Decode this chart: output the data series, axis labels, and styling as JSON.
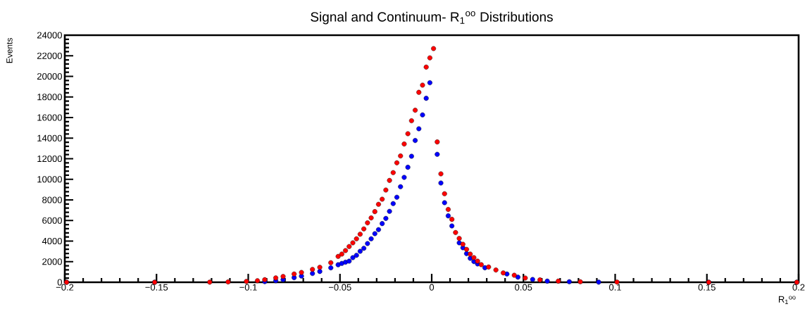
{
  "chart_data": {
    "type": "scatter",
    "title": "Signal and Continuum- R$_{1}$$^{oo}$ Distributions",
    "xlabel": "R$_{1}$$^{oo}$",
    "ylabel": "Events",
    "xlim": [
      -0.2,
      0.2
    ],
    "ylim": [
      0,
      24000
    ],
    "xticks": [
      {
        "value": -0.2,
        "label": "−0.2"
      },
      {
        "value": -0.15,
        "label": "−0.15"
      },
      {
        "value": -0.1,
        "label": "−0.1"
      },
      {
        "value": -0.05,
        "label": "−0.05"
      },
      0,
      0.05,
      0.1,
      0.15,
      0.2
    ],
    "yticks": [
      0,
      2000,
      4000,
      6000,
      8000,
      10000,
      12000,
      14000,
      16000,
      18000,
      20000,
      22000,
      24000
    ],
    "marker": "circle",
    "series": [
      {
        "color": "#0000ff",
        "x": [
          -0.199,
          -0.151,
          -0.101,
          -0.091,
          -0.085,
          -0.081,
          -0.075,
          -0.071,
          -0.065,
          -0.061,
          -0.055,
          -0.051,
          -0.049,
          -0.047,
          -0.045,
          -0.043,
          -0.041,
          -0.039,
          -0.037,
          -0.035,
          -0.033,
          -0.031,
          -0.029,
          -0.027,
          -0.025,
          -0.023,
          -0.021,
          -0.019,
          -0.017,
          -0.015,
          -0.013,
          -0.011,
          -0.009,
          -0.007,
          -0.005,
          -0.003,
          -0.001,
          0.001,
          0.003,
          0.005,
          0.007,
          0.009,
          0.011,
          0.013,
          0.015,
          0.017,
          0.019,
          0.021,
          0.023,
          0.025,
          0.029,
          0.035,
          0.041,
          0.047,
          0.055,
          0.063,
          0.075,
          0.091,
          0.151,
          0.199
        ],
        "values": [
          0,
          0,
          null,
          60,
          150,
          250,
          450,
          600,
          850,
          1050,
          1400,
          1700,
          1830,
          1950,
          2050,
          2390,
          2620,
          3010,
          3300,
          3760,
          4220,
          4720,
          5110,
          5700,
          6200,
          6890,
          7640,
          8260,
          9280,
          10190,
          11170,
          12240,
          13770,
          14910,
          16260,
          17870,
          19380,
          null,
          12430,
          9640,
          7730,
          6450,
          5470,
          null,
          3830,
          3350,
          2780,
          2330,
          2010,
          1780,
          1410,
          null,
          800,
          500,
          270,
          110,
          50,
          10,
          0,
          0
        ]
      },
      {
        "color": "#ff0000",
        "x": [
          -0.199,
          -0.151,
          -0.121,
          -0.111,
          -0.101,
          -0.095,
          -0.091,
          -0.085,
          -0.081,
          -0.075,
          -0.071,
          -0.065,
          -0.061,
          -0.055,
          -0.051,
          -0.049,
          -0.047,
          -0.045,
          -0.043,
          -0.041,
          -0.039,
          -0.037,
          -0.035,
          -0.033,
          -0.031,
          -0.029,
          -0.027,
          -0.025,
          -0.023,
          -0.021,
          -0.019,
          -0.017,
          -0.015,
          -0.013,
          -0.011,
          -0.009,
          -0.007,
          -0.005,
          -0.003,
          -0.001,
          0.001,
          0.003,
          0.005,
          0.007,
          0.009,
          0.011,
          0.013,
          0.015,
          0.017,
          0.019,
          0.021,
          0.023,
          0.025,
          0.027,
          0.031,
          0.035,
          0.039,
          0.045,
          0.051,
          0.059,
          0.069,
          0.081,
          0.101,
          0.151,
          0.199
        ],
        "values": [
          0,
          0,
          10,
          30,
          80,
          150,
          250,
          420,
          560,
          800,
          950,
          1250,
          1450,
          1900,
          2510,
          2740,
          3080,
          3470,
          3830,
          4220,
          4670,
          5180,
          5770,
          6250,
          6860,
          7570,
          8070,
          8960,
          9890,
          10650,
          11600,
          12270,
          13430,
          14430,
          15690,
          16710,
          18450,
          19150,
          20900,
          21800,
          22700,
          13630,
          10530,
          8600,
          7070,
          6110,
          4830,
          4260,
          3690,
          3190,
          2740,
          2390,
          2050,
          1710,
          1480,
          1190,
          910,
          680,
          410,
          230,
          110,
          50,
          20,
          0,
          0
        ]
      }
    ]
  }
}
